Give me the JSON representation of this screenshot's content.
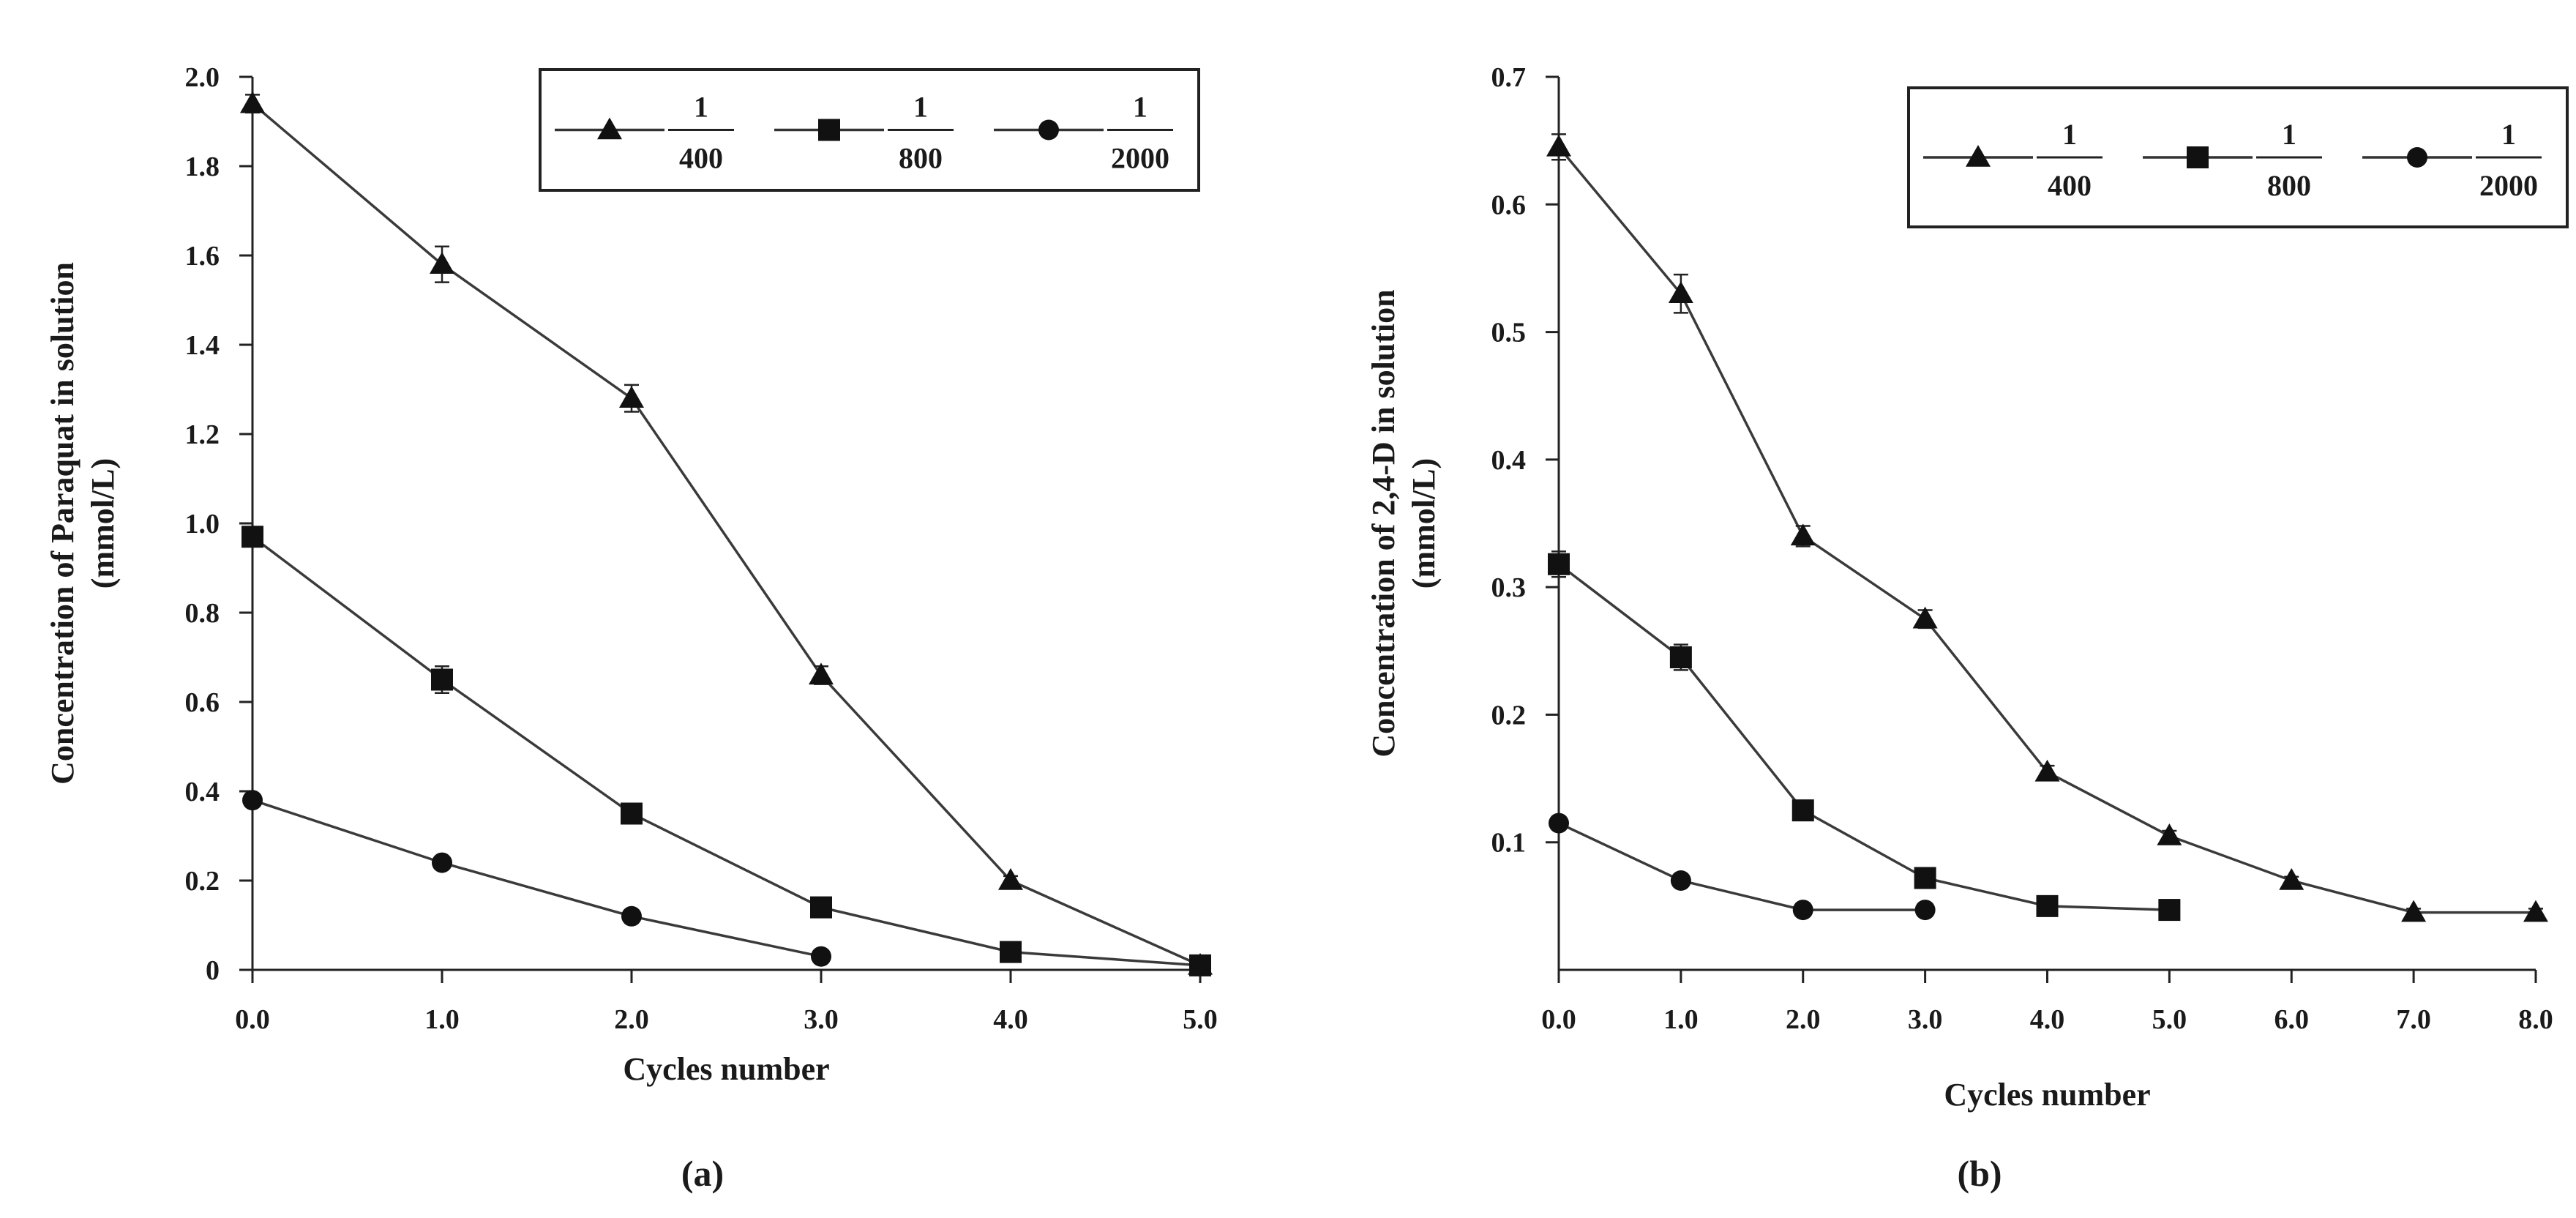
{
  "chart_data": [
    {
      "type": "line",
      "panel_label": "(a)",
      "xlabel": "Cycles number",
      "ylabel": "Concentration of Paraquat in solution (mmol/L)",
      "ylabel_lines": [
        "Concentration of Paraquat in solution",
        "(mmol/L)"
      ],
      "xlim": [
        0,
        5
      ],
      "ylim": [
        0,
        2.0
      ],
      "xticks": [
        0,
        1,
        2,
        3,
        4,
        5
      ],
      "xtick_labels": [
        "0.0",
        "1.0",
        "2.0",
        "3.0",
        "4.0",
        "5.0"
      ],
      "yticks": [
        0,
        0.2,
        0.4,
        0.6,
        0.8,
        1.0,
        1.2,
        1.4,
        1.6,
        1.8,
        2.0
      ],
      "ytick_labels": [
        "0",
        "0.2",
        "0.4",
        "0.6",
        "0.8",
        "1.0",
        "1.2",
        "1.4",
        "1.6",
        "1.8",
        "2.0"
      ],
      "legend_position": "top-right",
      "series": [
        {
          "name": "1/400",
          "num": "1",
          "den": "400",
          "marker": "triangle",
          "x": [
            0,
            1,
            2,
            3,
            4,
            5
          ],
          "y": [
            1.94,
            1.58,
            1.28,
            0.66,
            0.2,
            0.01
          ],
          "err": [
            0.02,
            0.04,
            0.03,
            0.02,
            0.01,
            0.01
          ]
        },
        {
          "name": "1/800",
          "num": "1",
          "den": "800",
          "marker": "square",
          "x": [
            0,
            1,
            2,
            3,
            4,
            5
          ],
          "y": [
            0.97,
            0.65,
            0.35,
            0.14,
            0.04,
            0.01
          ],
          "err": [
            0.02,
            0.03,
            0.02,
            0.01,
            0.01,
            0.01
          ]
        },
        {
          "name": "1/2000",
          "num": "1",
          "den": "2000",
          "marker": "circle",
          "x": [
            0,
            1,
            2,
            3
          ],
          "y": [
            0.38,
            0.24,
            0.12,
            0.03
          ],
          "err": [
            0.01,
            0.01,
            0.01,
            0.01
          ]
        }
      ]
    },
    {
      "type": "line",
      "panel_label": "(b)",
      "xlabel": "Cycles number",
      "ylabel": "Concentration of 2,4-D in solution (mmol/L)",
      "ylabel_lines": [
        "Concentration of 2,4-D in solution",
        "(mmol/L)"
      ],
      "xlim": [
        0,
        8
      ],
      "ylim": [
        0,
        0.7
      ],
      "xticks": [
        0,
        1,
        2,
        3,
        4,
        5,
        6,
        7,
        8
      ],
      "xtick_labels": [
        "0.0",
        "1.0",
        "2.0",
        "3.0",
        "4.0",
        "5.0",
        "6.0",
        "7.0",
        "8.0"
      ],
      "yticks": [
        0.1,
        0.2,
        0.3,
        0.4,
        0.5,
        0.6,
        0.7
      ],
      "ytick_labels": [
        "0.1",
        "0.2",
        "0.3",
        "0.4",
        "0.5",
        "0.6",
        "0.7"
      ],
      "legend_position": "top-right",
      "series": [
        {
          "name": "1/400",
          "num": "1",
          "den": "400",
          "marker": "triangle",
          "x": [
            0,
            1,
            2,
            3,
            4,
            5,
            6,
            7,
            8
          ],
          "y": [
            0.645,
            0.53,
            0.34,
            0.275,
            0.155,
            0.105,
            0.07,
            0.045,
            0.045
          ],
          "err": [
            0.01,
            0.015,
            0.008,
            0.007,
            0.005,
            0.004,
            0.003,
            0.003,
            0.003
          ]
        },
        {
          "name": "1/800",
          "num": "1",
          "den": "800",
          "marker": "square",
          "x": [
            0,
            1,
            2,
            3,
            4,
            5
          ],
          "y": [
            0.318,
            0.245,
            0.125,
            0.072,
            0.05,
            0.047
          ],
          "err": [
            0.01,
            0.01,
            0.005,
            0.004,
            0.003,
            0.003
          ]
        },
        {
          "name": "1/2000",
          "num": "1",
          "den": "2000",
          "marker": "circle",
          "x": [
            0,
            1,
            2,
            3
          ],
          "y": [
            0.115,
            0.07,
            0.047,
            0.047
          ],
          "err": [
            0.004,
            0.003,
            0.002,
            0.002
          ]
        }
      ]
    }
  ]
}
